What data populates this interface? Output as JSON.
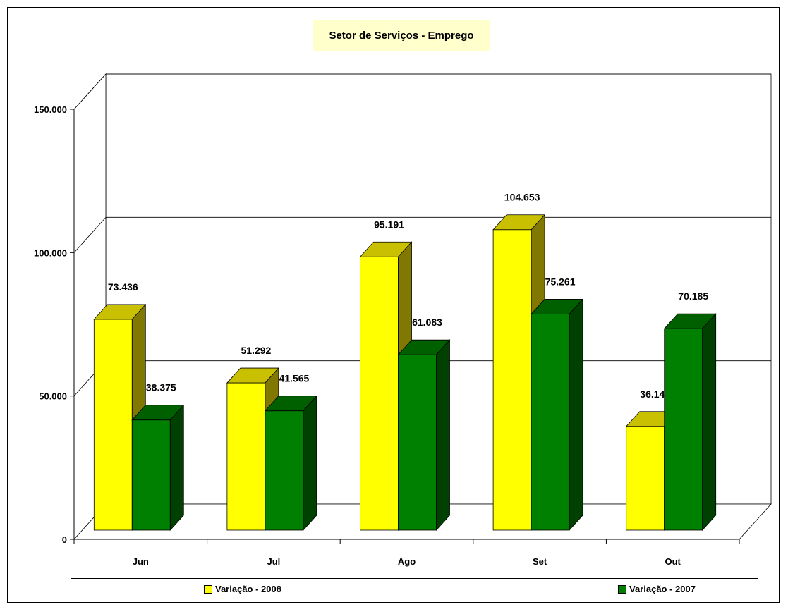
{
  "chart_data": {
    "type": "bar",
    "title": "Setor de Serviços - Emprego",
    "categories": [
      "Jun",
      "Jul",
      "Ago",
      "Set",
      "Out"
    ],
    "series": [
      {
        "name": "Variação - 2008",
        "values": [
          73436,
          51292,
          95191,
          104653,
          36142
        ],
        "labels": [
          "73.436",
          "51.292",
          "95.191",
          "104.653",
          "36.142"
        ],
        "color": "#ffff00"
      },
      {
        "name": "Variação - 2007",
        "values": [
          38375,
          41565,
          61083,
          75261,
          70185
        ],
        "labels": [
          "38.375",
          "41.565",
          "61.083",
          "75.261",
          "70.185"
        ],
        "color": "#008000"
      }
    ],
    "yticks": [
      {
        "value": 0,
        "label": "0"
      },
      {
        "value": 50000,
        "label": "50.000"
      },
      {
        "value": 100000,
        "label": "100.000"
      },
      {
        "value": 150000,
        "label": "150.000"
      }
    ],
    "ylim": [
      0,
      150000
    ],
    "grid": true,
    "legend_position": "bottom",
    "style": "3d-column"
  }
}
